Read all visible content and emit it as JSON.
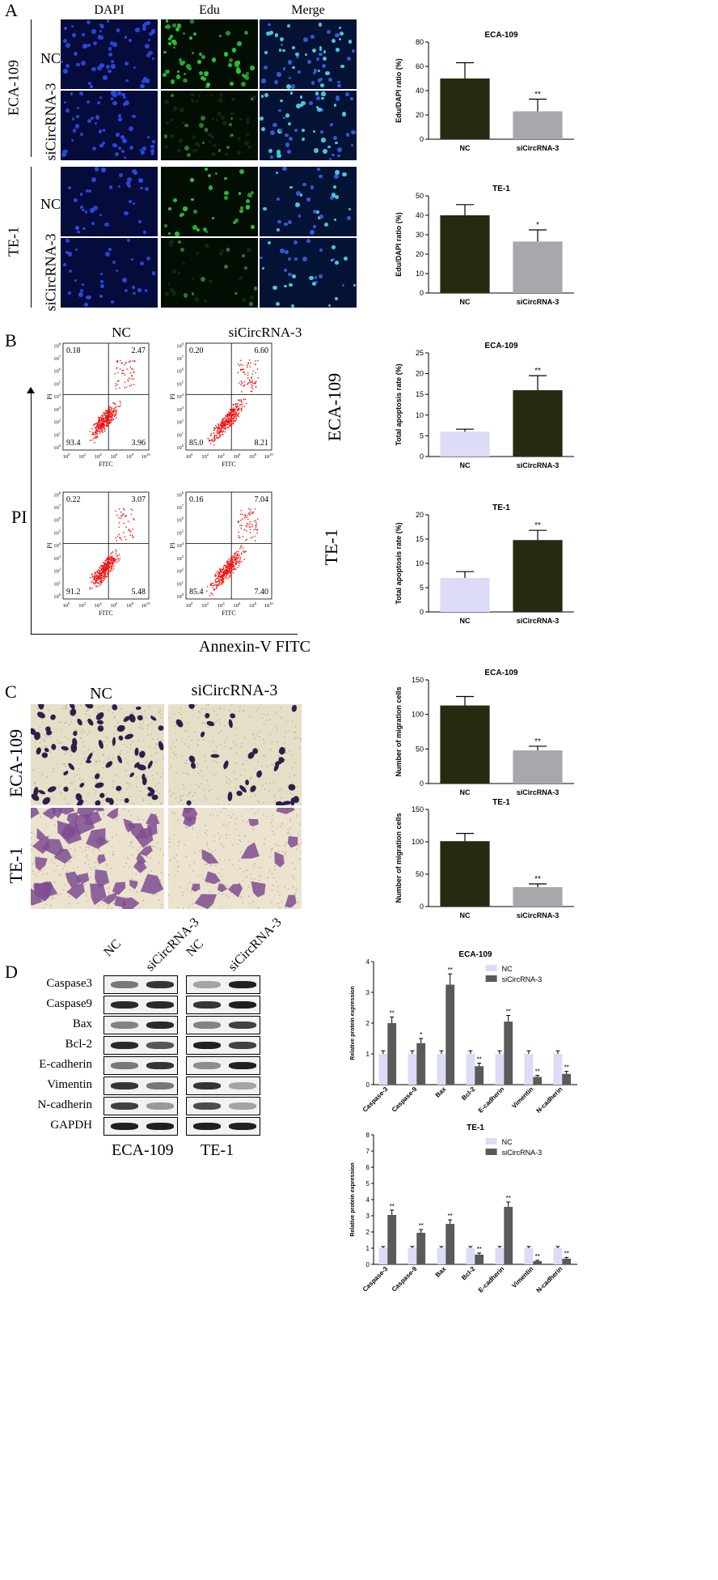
{
  "panel_labels": [
    "A",
    "B",
    "C",
    "D"
  ],
  "panelA": {
    "col_headers": [
      "DAPI",
      "Edu",
      "Merge"
    ],
    "cell_lines": [
      "ECA-109",
      "TE-1"
    ],
    "row_labels": [
      "NC",
      "siCircRNA-3"
    ]
  },
  "panelB": {
    "col_headers": [
      "NC",
      "siCircRNA-3"
    ],
    "cell_lines": [
      "ECA-109",
      "TE-1"
    ],
    "y_axis_label": "PI",
    "x_axis_label": "Annexin-V FITC",
    "plot_xlabel": "FITC",
    "plot_ylabel": "PI",
    "quadrants": [
      {
        "ul": "0.18",
        "ur": "2.47",
        "ll": "93.4",
        "lr": "3.96"
      },
      {
        "ul": "0.20",
        "ur": "6.60",
        "ll": "85.0",
        "lr": "8.21"
      },
      {
        "ul": "0.22",
        "ur": "3.07",
        "ll": "91.2",
        "lr": "5.48"
      },
      {
        "ul": "0.16",
        "ur": "7.04",
        "ll": "85.4",
        "lr": "7.40"
      }
    ]
  },
  "panelC": {
    "col_headers": [
      "NC",
      "siCircRNA-3"
    ],
    "cell_lines": [
      "ECA-109",
      "TE-1"
    ]
  },
  "panelD": {
    "col_headers": [
      "NC",
      "siCircRNA-3",
      "NC",
      "siCircRNA-3"
    ],
    "proteins": [
      "Caspase3",
      "Caspase9",
      "Bax",
      "Bcl-2",
      "E-cadherin",
      "Vimentin",
      "N-cadherin",
      "GAPDH"
    ],
    "blot_labels": [
      "ECA-109",
      "TE-1"
    ]
  },
  "chart_data": [
    {
      "type": "bar",
      "title": "ECA-109",
      "categories": [
        "NC",
        "siCircRNA-3"
      ],
      "values": [
        50,
        23
      ],
      "errors": [
        13,
        10
      ],
      "sig": [
        "",
        "**"
      ],
      "ylabel": "Edu/DAPI ratio (%)",
      "ylim": [
        0,
        80
      ],
      "yticks": [
        "0",
        "20",
        "40",
        "60",
        "80"
      ],
      "colors": [
        "#262a10",
        "#a7a8ab"
      ]
    },
    {
      "type": "bar",
      "title": "TE-1",
      "categories": [
        "NC",
        "siCircRNA-3"
      ],
      "values": [
        40,
        26.5
      ],
      "errors": [
        5.5,
        6
      ],
      "sig": [
        "",
        "*"
      ],
      "ylabel": "Edu/DAPI ratio (%)",
      "ylim": [
        0,
        50
      ],
      "yticks": [
        "0",
        "10",
        "20",
        "30",
        "40",
        "50"
      ],
      "colors": [
        "#262a10",
        "#a7a8ab"
      ]
    },
    {
      "type": "bar",
      "title": "ECA-109",
      "categories": [
        "NC",
        "siCircRNA-3"
      ],
      "values": [
        6,
        16
      ],
      "errors": [
        0.6,
        3.5
      ],
      "sig": [
        "",
        "**"
      ],
      "ylabel": "Total apoptosis rate (%)",
      "ylim": [
        0,
        25
      ],
      "yticks": [
        "0",
        "5",
        "10",
        "15",
        "20",
        "25"
      ],
      "colors": [
        "#dcdcf8",
        "#262a10"
      ]
    },
    {
      "type": "bar",
      "title": "TE-1",
      "categories": [
        "NC",
        "siCircRNA-3"
      ],
      "values": [
        7,
        14.8
      ],
      "errors": [
        1.3,
        2
      ],
      "sig": [
        "",
        "**"
      ],
      "ylabel": "Total apoptosis rate (%)",
      "ylim": [
        0,
        20
      ],
      "yticks": [
        "0",
        "5",
        "10",
        "15",
        "20"
      ],
      "colors": [
        "#dcdcf8",
        "#262a10"
      ]
    },
    {
      "type": "bar",
      "title": "ECA-109",
      "categories": [
        "NC",
        "siCircRNA-3"
      ],
      "values": [
        113,
        48
      ],
      "errors": [
        13,
        6
      ],
      "sig": [
        "",
        "**"
      ],
      "ylabel": "Number of migration cells",
      "ylim": [
        0,
        150
      ],
      "yticks": [
        "0",
        "50",
        "100",
        "150"
      ],
      "colors": [
        "#262a10",
        "#a7a8ab"
      ]
    },
    {
      "type": "bar",
      "title": "TE-1",
      "categories": [
        "NC",
        "siCircRNA-3"
      ],
      "values": [
        101,
        30
      ],
      "errors": [
        12,
        5
      ],
      "sig": [
        "",
        "**"
      ],
      "ylabel": "Number of migration cells",
      "ylim": [
        0,
        150
      ],
      "yticks": [
        "0",
        "50",
        "100",
        "150"
      ],
      "colors": [
        "#262a10",
        "#a7a8ab"
      ]
    },
    {
      "type": "bar",
      "title": "ECA-109",
      "categories": [
        "Caspase-3",
        "Caspase-9",
        "Bax",
        "Bcl-2",
        "E-cadherin",
        "Vimentin",
        "N-cadherin"
      ],
      "series": [
        {
          "name": "NC",
          "values": [
            1,
            1,
            1,
            1,
            1,
            1,
            1
          ],
          "errors": [
            0.1,
            0.1,
            0.1,
            0.1,
            0.1,
            0.1,
            0.1
          ]
        },
        {
          "name": "siCircRNA-3",
          "values": [
            2,
            1.35,
            3.25,
            0.6,
            2.05,
            0.25,
            0.35
          ],
          "errors": [
            0.2,
            0.15,
            0.35,
            0.1,
            0.2,
            0.05,
            0.08
          ]
        }
      ],
      "sig": [
        [
          "",
          "**"
        ],
        [
          "",
          "*"
        ],
        [
          "",
          "**"
        ],
        [
          "",
          "**"
        ],
        [
          "",
          "**"
        ],
        [
          "",
          "**"
        ],
        [
          "",
          "**"
        ]
      ],
      "ylabel": "Relative protein expression",
      "ylim": [
        0,
        4
      ],
      "yticks": [
        "0",
        "1",
        "2",
        "3",
        "4"
      ],
      "colors": [
        "#dcdcf8",
        "#5a5a5a"
      ],
      "legend": "top-right"
    },
    {
      "type": "bar",
      "title": "TE-1",
      "categories": [
        "Caspase-3",
        "Caspase-9",
        "Bax",
        "Bcl-2",
        "E-cadherin",
        "Vimentin",
        "N-cadherin"
      ],
      "series": [
        {
          "name": "NC",
          "values": [
            1,
            1,
            1,
            1,
            1,
            1,
            1
          ],
          "errors": [
            0.1,
            0.1,
            0.1,
            0.1,
            0.1,
            0.1,
            0.1
          ]
        },
        {
          "name": "siCircRNA-3",
          "values": [
            3.05,
            1.95,
            2.5,
            0.6,
            3.55,
            0.2,
            0.35
          ],
          "errors": [
            0.3,
            0.2,
            0.25,
            0.1,
            0.3,
            0.05,
            0.08
          ]
        }
      ],
      "sig": [
        [
          "",
          "**"
        ],
        [
          "",
          "**"
        ],
        [
          "",
          "**"
        ],
        [
          "",
          "**"
        ],
        [
          "",
          "**"
        ],
        [
          "",
          "**"
        ],
        [
          "",
          "**"
        ]
      ],
      "ylabel": "Relative protein expression",
      "ylim": [
        0,
        8
      ],
      "yticks": [
        "0",
        "1",
        "2",
        "3",
        "4",
        "5",
        "6",
        "7",
        "8"
      ],
      "colors": [
        "#dcdcf8",
        "#5a5a5a"
      ],
      "legend": "top-right"
    }
  ]
}
